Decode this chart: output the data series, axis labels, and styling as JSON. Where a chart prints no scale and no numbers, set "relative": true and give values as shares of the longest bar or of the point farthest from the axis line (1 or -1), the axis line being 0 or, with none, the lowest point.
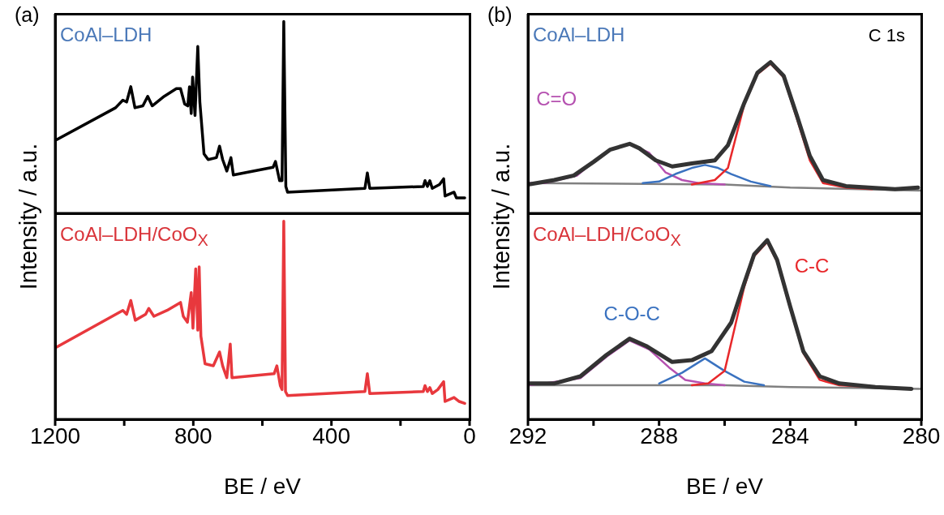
{
  "chart_data": [
    {
      "type": "line",
      "title": "CoAl–LDH",
      "ylabel": "Intensity / a.u.",
      "annotations": [
        "(a)"
      ],
      "relative": true,
      "xlim": [
        1200,
        0
      ],
      "tick_labels": false,
      "series": [
        {
          "color": "#000000",
          "x": [
            1200,
            1025,
            1004,
            993,
            981,
            969,
            946,
            932,
            919,
            884,
            849,
            837,
            825,
            816,
            811,
            806,
            802,
            795,
            787,
            781,
            769,
            757,
            733,
            724,
            715,
            703,
            691,
            684,
            569,
            562,
            550,
            543,
            538,
            532,
            527,
            303,
            296,
            289,
            134,
            129,
            122,
            115,
            108,
            87,
            75,
            71,
            45,
            38,
            14
          ],
          "values": [
            0.38,
            0.55,
            0.59,
            0.58,
            0.66,
            0.55,
            0.56,
            0.61,
            0.56,
            0.61,
            0.65,
            0.65,
            0.57,
            0.56,
            0.66,
            0.52,
            0.71,
            0.51,
            0.87,
            0.58,
            0.31,
            0.28,
            0.29,
            0.35,
            0.28,
            0.22,
            0.29,
            0.2,
            0.24,
            0.27,
            0.17,
            0.17,
            1.0,
            0.14,
            0.11,
            0.13,
            0.21,
            0.13,
            0.14,
            0.17,
            0.14,
            0.17,
            0.13,
            0.15,
            0.18,
            0.09,
            0.11,
            0.08,
            0.08
          ]
        }
      ]
    },
    {
      "type": "line",
      "title": "CoAl–LDH/CoO$_{X}$",
      "xlabel": "BE / eV",
      "relative": true,
      "xlim": [
        1200,
        0
      ],
      "xticks": [
        1200,
        {
          "value": 1000,
          "label": null
        },
        800,
        {
          "value": 600,
          "label": null
        },
        400,
        {
          "value": 200,
          "label": null
        },
        0
      ],
      "tick_labels": "x",
      "series": [
        {
          "color": "#e8383d",
          "x": [
            1200,
            1004,
            993,
            981,
            968,
            938,
            929,
            914,
            876,
            837,
            829,
            817,
            806,
            801,
            793,
            787,
            783,
            778,
            766,
            742,
            724,
            715,
            703,
            693,
            688,
            566,
            558,
            548,
            543,
            538,
            533,
            527,
            303,
            296,
            289,
            134,
            129,
            122,
            115,
            108,
            92,
            75,
            71,
            45,
            30,
            14
          ],
          "values": [
            0.36,
            0.55,
            0.53,
            0.6,
            0.5,
            0.53,
            0.56,
            0.52,
            0.55,
            0.59,
            0.52,
            0.49,
            0.64,
            0.46,
            0.76,
            0.45,
            0.77,
            0.42,
            0.28,
            0.27,
            0.34,
            0.27,
            0.21,
            0.38,
            0.21,
            0.23,
            0.27,
            0.17,
            0.15,
            1.0,
            0.14,
            0.12,
            0.14,
            0.23,
            0.13,
            0.14,
            0.17,
            0.14,
            0.16,
            0.13,
            0.15,
            0.19,
            0.09,
            0.11,
            0.09,
            0.08
          ]
        }
      ]
    },
    {
      "type": "line",
      "title": "CoAl–LDH",
      "ylabel": "Intensity / a.u.",
      "annotations": [
        "(b)",
        "C 1s"
      ],
      "relative": true,
      "xlim": [
        292,
        280
      ],
      "tick_labels": false,
      "series": [
        {
          "color": "#808080",
          "x": [
            292,
            286,
            284,
            280
          ],
          "values": [
            0.2,
            0.19,
            0.17,
            0.15
          ]
        },
        {
          "name": "C=O",
          "color": "#b551b0",
          "x": [
            292,
            291.5,
            290.5,
            290,
            289.5,
            288.9,
            288.3,
            287.8,
            287.3,
            286.8,
            286
          ],
          "values": [
            0.2,
            0.2,
            0.25,
            0.34,
            0.42,
            0.46,
            0.4,
            0.27,
            0.22,
            0.2,
            0.19
          ]
        },
        {
          "color": "#3a72c0",
          "x": [
            288.5,
            288,
            287.5,
            287,
            286.6,
            286.2,
            285.8,
            285.2,
            284.6
          ],
          "values": [
            0.2,
            0.21,
            0.26,
            0.3,
            0.32,
            0.3,
            0.26,
            0.21,
            0.18
          ]
        },
        {
          "color": "#e8282b",
          "x": [
            287,
            286.3,
            285.9,
            285.4,
            285,
            284.6,
            284.2,
            283.8,
            283.4,
            283,
            282.3,
            281.5
          ],
          "values": [
            0.19,
            0.22,
            0.3,
            0.72,
            0.92,
            0.99,
            0.9,
            0.63,
            0.35,
            0.2,
            0.17,
            0.16
          ]
        },
        {
          "color": "#333333",
          "x": [
            292,
            291.2,
            290.6,
            290,
            289.5,
            288.9,
            288.6,
            288.1,
            287.6,
            287,
            286.3,
            285.9,
            285.4,
            285,
            284.6,
            284.2,
            283.8,
            283.4,
            283,
            282.3,
            281.6,
            280.8,
            280.1
          ],
          "values": [
            0.19,
            0.22,
            0.25,
            0.34,
            0.42,
            0.46,
            0.43,
            0.35,
            0.31,
            0.33,
            0.35,
            0.45,
            0.73,
            0.93,
            1.0,
            0.91,
            0.65,
            0.38,
            0.22,
            0.18,
            0.17,
            0.16,
            0.17
          ]
        }
      ]
    },
    {
      "type": "line",
      "title": "CoAl–LDH/CoO$_{X}$",
      "xlabel": "BE / eV",
      "relative": true,
      "xlim": [
        292,
        280
      ],
      "xticks": [
        292,
        {
          "value": 290,
          "label": null
        },
        288,
        {
          "value": 286,
          "label": null
        },
        284,
        {
          "value": 282,
          "label": null
        },
        280
      ],
      "tick_labels": "x",
      "series": [
        {
          "color": "#808080",
          "x": [
            292,
            286,
            284,
            280
          ],
          "values": [
            0.19,
            0.19,
            0.18,
            0.17
          ]
        },
        {
          "color": "#b551b0",
          "x": [
            292,
            291.5,
            290.4,
            289.6,
            288.9,
            288.3,
            287.7,
            287.2,
            286.6,
            286
          ],
          "values": [
            0.19,
            0.2,
            0.23,
            0.35,
            0.44,
            0.39,
            0.29,
            0.22,
            0.2,
            0.19
          ]
        },
        {
          "name": "C-O-C",
          "color": "#3a72c0",
          "x": [
            288,
            287.3,
            286.6,
            286,
            285.4,
            284.8
          ],
          "values": [
            0.2,
            0.26,
            0.34,
            0.27,
            0.21,
            0.19
          ]
        },
        {
          "name": "C-C",
          "color": "#e8282b",
          "x": [
            287,
            286.5,
            286,
            285.4,
            285.1,
            284.7,
            284.4,
            284,
            283.6,
            283.1,
            282.5,
            281.5
          ],
          "values": [
            0.19,
            0.2,
            0.27,
            0.74,
            0.91,
            0.99,
            0.88,
            0.62,
            0.37,
            0.22,
            0.19,
            0.18
          ]
        },
        {
          "color": "#333333",
          "x": [
            292,
            291.2,
            290.4,
            289.6,
            288.9,
            288.4,
            287.6,
            287,
            286.4,
            285.8,
            285.4,
            285.1,
            284.7,
            284.4,
            284,
            283.6,
            283.1,
            282.5,
            281.4,
            280.3
          ],
          "values": [
            0.2,
            0.2,
            0.24,
            0.36,
            0.45,
            0.41,
            0.32,
            0.33,
            0.38,
            0.54,
            0.76,
            0.92,
            1.0,
            0.89,
            0.63,
            0.38,
            0.24,
            0.2,
            0.18,
            0.17
          ]
        }
      ]
    }
  ]
}
